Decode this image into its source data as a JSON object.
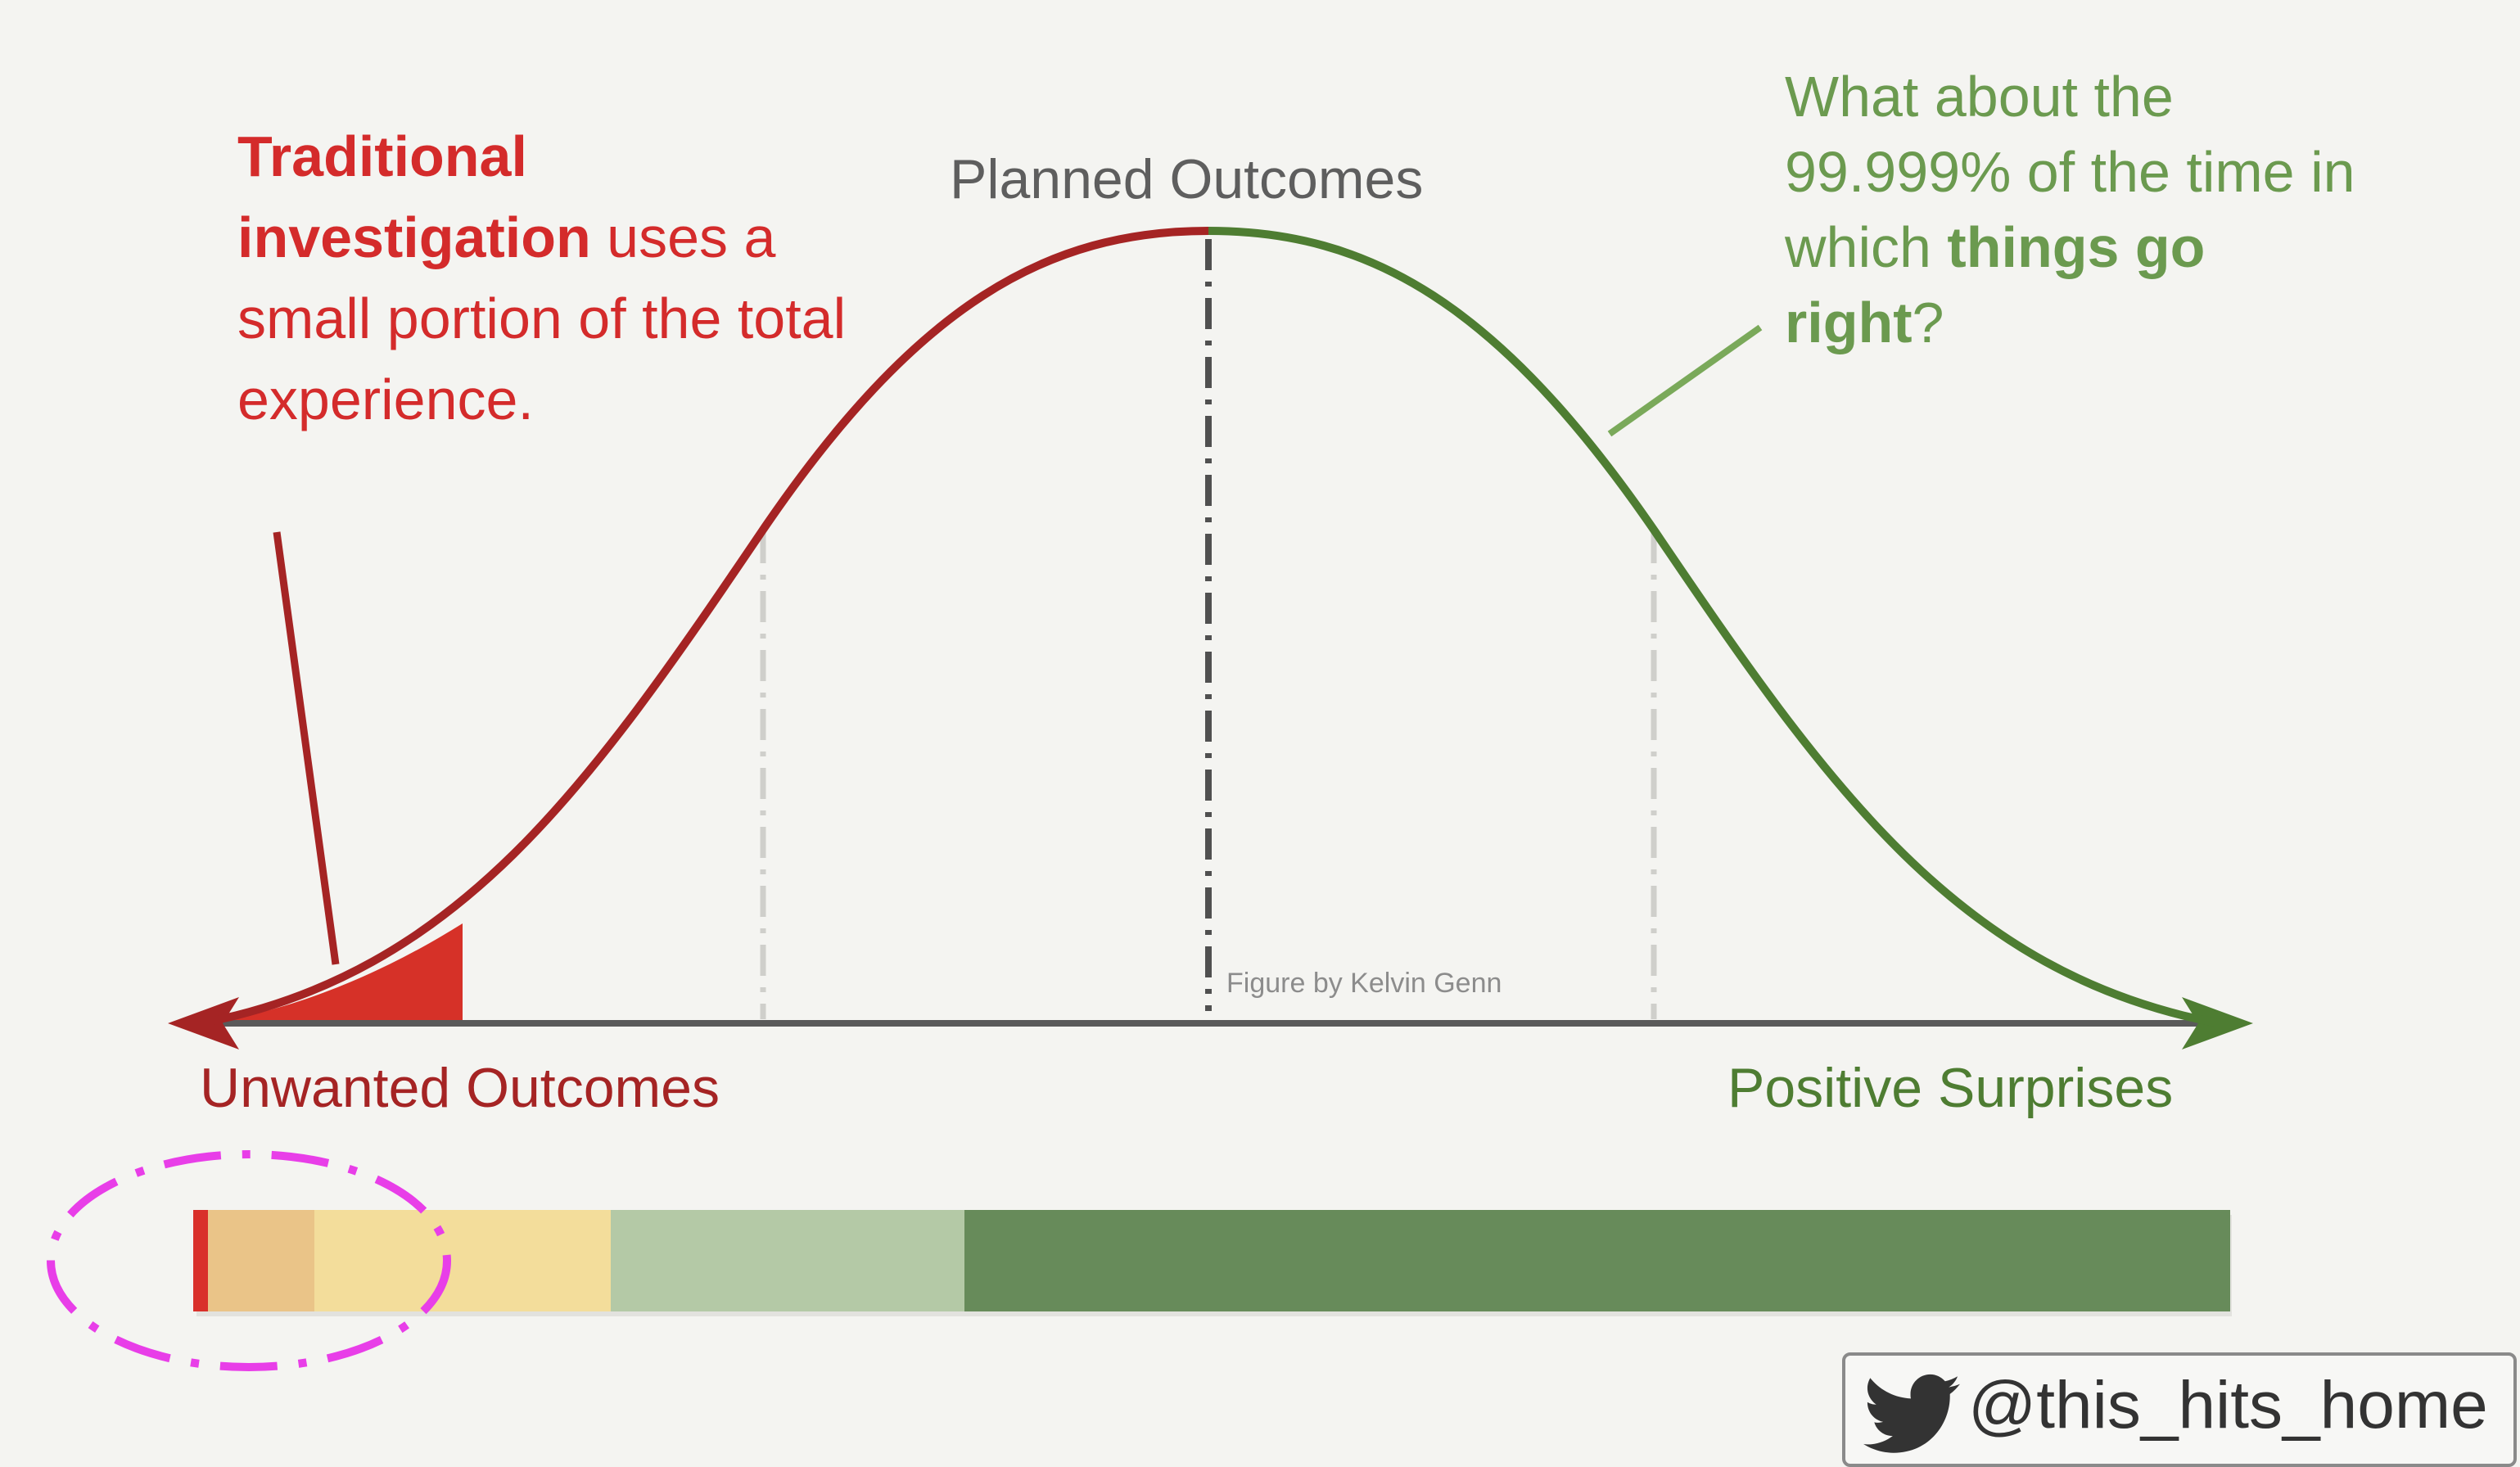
{
  "annotations": {
    "left_bold": "Traditional investigation",
    "left_rest": " uses a small portion of the total experience.",
    "right_lead": "What about the 99.999% of the time in which ",
    "right_bold": "things go right",
    "right_end": "?",
    "planned": "Planned Outcomes",
    "credit": "Figure by Kelvin Genn",
    "unwanted": "Unwanted Outcomes",
    "positive": "Positive Surprises"
  },
  "handle": "@this_hits_home",
  "colors": {
    "curve_left": "#a52424",
    "curve_right": "#4e7d32",
    "tail_fill": "#d63128",
    "right_pointer": "#7aa95a",
    "axis": "#5a5a5a",
    "highlight_ellipse": "#e83ee8"
  },
  "icons": [
    "twitter-bird-icon"
  ],
  "spectrum_bar": [
    {
      "name": "red",
      "color": "#d9302a"
    },
    {
      "name": "orange",
      "color": "#eac488"
    },
    {
      "name": "yellow",
      "color": "#f3dd9b"
    },
    {
      "name": "light-green",
      "color": "#b4c9a6"
    },
    {
      "name": "dark-green",
      "color": "#678b5a"
    }
  ]
}
